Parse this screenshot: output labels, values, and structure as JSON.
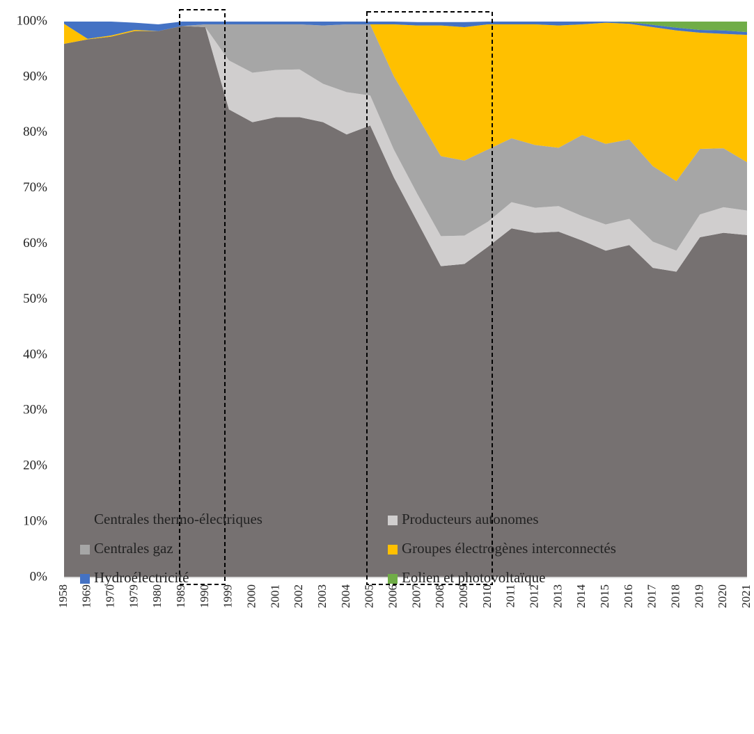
{
  "chart_data": {
    "type": "stacked_area",
    "categories": [
      "1958",
      "1969",
      "1970",
      "1979",
      "1980",
      "1989",
      "1990",
      "1999",
      "2000",
      "2001",
      "2002",
      "2003",
      "2004",
      "2005",
      "2006",
      "2007",
      "2008",
      "2009",
      "2010",
      "2011",
      "2012",
      "2013",
      "2014",
      "2015",
      "2016",
      "2017",
      "2018",
      "2019",
      "2020",
      "2021"
    ],
    "series": [
      {
        "name": "Centrales thermo-électriques",
        "color": "#767171",
        "values": [
          96,
          96.8,
          97.3,
          98.3,
          98.3,
          99.2,
          99,
          84.2,
          81.9,
          82.8,
          82.8,
          81.9,
          79.7,
          81.3,
          72,
          64,
          56,
          56.4,
          59.5,
          62.8,
          62,
          62.2,
          60.6,
          58.8,
          59.8,
          55.7,
          55,
          61.2,
          62,
          61.6
        ]
      },
      {
        "name": "Producteurs autonomes",
        "color": "#d0cece",
        "values": [
          0,
          0,
          0,
          0,
          0,
          0,
          0,
          8.8,
          8.9,
          8.5,
          8.6,
          6.9,
          7.6,
          5.4,
          5,
          5,
          5.4,
          5.1,
          4.5,
          4.7,
          4.5,
          4.6,
          4.4,
          4.7,
          4.7,
          4.7,
          3.8,
          4.1,
          4.6,
          4.4
        ]
      },
      {
        "name": "Centrales gaz",
        "color": "#a6a6a6",
        "values": [
          0,
          0,
          0,
          0,
          0,
          0,
          0.5,
          6.5,
          8.7,
          8.2,
          8.1,
          10.5,
          12.2,
          12.8,
          13.2,
          14,
          14.4,
          13.5,
          13,
          11.5,
          11.3,
          10.5,
          14.6,
          14.5,
          14.3,
          13.6,
          12.5,
          11.8,
          10.6,
          8.7
        ]
      },
      {
        "name": "Groupes électrogènes interconnectés",
        "color": "#ffc000",
        "values": [
          3.6,
          0.1,
          0.2,
          0.2,
          0,
          0,
          0,
          0,
          0,
          0,
          0,
          0,
          0,
          0,
          9.3,
          16.3,
          23.5,
          24,
          22.5,
          20.5,
          21.7,
          22,
          19.9,
          21.8,
          20.8,
          25,
          27.1,
          20.9,
          20.6,
          22.9
        ]
      },
      {
        "name": "Hydroélectricité",
        "color": "#4472c4",
        "values": [
          0.4,
          3.1,
          2.5,
          1.3,
          1.2,
          0.8,
          0.5,
          0.5,
          0.5,
          0.5,
          0.5,
          0.7,
          0.5,
          0.5,
          0.5,
          0.6,
          0.6,
          0.9,
          0.5,
          0.5,
          0.5,
          0.7,
          0.5,
          0.2,
          0.3,
          0.4,
          0.5,
          0.5,
          0.6,
          0.5
        ]
      },
      {
        "name": "Eolien et photovoltaïque",
        "color": "#70ad47",
        "values": [
          0,
          0,
          0,
          0,
          0,
          0,
          0,
          0,
          0,
          0,
          0,
          0,
          0,
          0,
          0,
          0,
          0,
          0,
          0,
          0,
          0,
          0,
          0,
          0,
          0.1,
          0.6,
          1.1,
          1.5,
          1.6,
          1.9
        ]
      }
    ],
    "ylim": [
      0,
      100
    ],
    "yticks": [
      {
        "value": 0,
        "label": "0%"
      },
      {
        "value": 10,
        "label": "10%"
      },
      {
        "value": 20,
        "label": "20%"
      },
      {
        "value": 30,
        "label": "30%"
      },
      {
        "value": 40,
        "label": "40%"
      },
      {
        "value": 50,
        "label": "50%"
      },
      {
        "value": 60,
        "label": "60%"
      },
      {
        "value": 70,
        "label": "70%"
      },
      {
        "value": 80,
        "label": "80%"
      },
      {
        "value": 90,
        "label": "90%"
      },
      {
        "value": 100,
        "label": "100%"
      }
    ],
    "grid": false
  }
}
